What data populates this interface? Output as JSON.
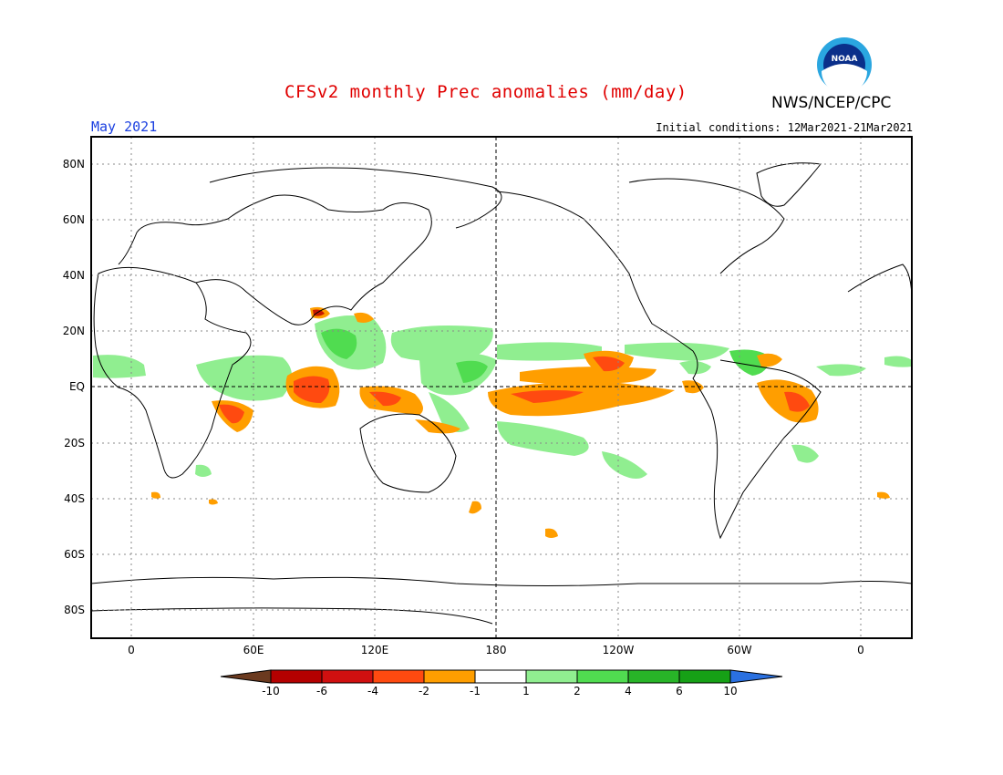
{
  "header": {
    "title": "CFSv2 monthly Prec anomalies (mm/day)",
    "org": "NWS/NCEP/CPC",
    "logo_text": "NOAA",
    "month": "May 2021",
    "initial_conditions": "Initial conditions: 12Mar2021-21Mar2021"
  },
  "axes": {
    "lat_labels": [
      "80N",
      "60N",
      "40N",
      "20N",
      "EQ",
      "20S",
      "40S",
      "60S",
      "80S"
    ],
    "lon_labels": [
      "0",
      "60E",
      "120E",
      "180",
      "120W",
      "60W",
      "0"
    ],
    "lat_range": [
      -90,
      90
    ],
    "lon_range": [
      -15,
      285
    ]
  },
  "colorbar": {
    "labels": [
      "-10",
      "-6",
      "-4",
      "-2",
      "-1",
      "1",
      "2",
      "4",
      "6",
      "10"
    ],
    "colors": [
      "#6b3a1f",
      "#b40000",
      "#d01010",
      "#ff4a10",
      "#ff9e00",
      "#ffffff",
      "#90ee90",
      "#50dc50",
      "#28b428",
      "#16a016",
      "#2a70e0"
    ]
  },
  "map": {
    "palette": {
      "dry_strong": "#c81a00",
      "dry_mid": "#ff4a10",
      "dry_weak": "#ff9e00",
      "wet_weak": "#90ee90",
      "wet_mid": "#50dc50",
      "wet_strong": "#28b428"
    }
  }
}
